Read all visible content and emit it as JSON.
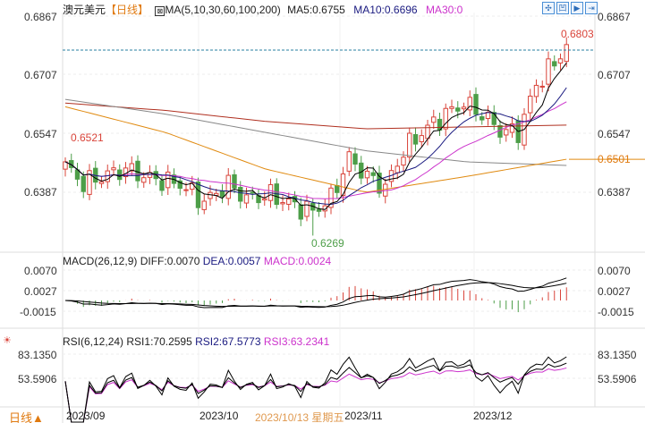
{
  "header": {
    "symbol": "澳元美元",
    "period": "【日线】",
    "ma_params": "MA(5,10,30,60,100,200)",
    "ma5": "MA5:0.6755",
    "ma10": "MA10:0.6696",
    "ma30": "MA30:0"
  },
  "toolbar": {
    "icons": [
      "move-icon",
      "chart-type-icon",
      "play-icon",
      "expand-icon"
    ]
  },
  "main_axis": {
    "left": [
      "0.6867",
      "0.6707",
      "0.6547",
      "0.6387"
    ],
    "right": [
      "0.6867",
      "0.6707",
      "0.6547",
      "0.6387"
    ],
    "last_price": "0.6803",
    "high_marker": "0.6521",
    "low_marker": "0.6269",
    "ma_value_tag": "0.6501"
  },
  "macd": {
    "title": "MACD(26,12,9)",
    "diff": "DIFF:0.0070",
    "dea": "DEA:0.0057",
    "macd": "MACD:0.0024",
    "ticks": [
      "0.0070",
      "0.0027",
      "-0.0015"
    ]
  },
  "rsi": {
    "title": "RSI(6,12,24)",
    "rsi1": "RSI1:70.2595",
    "rsi2": "RSI2:67.5773",
    "rsi3": "RSI3:63.2341",
    "ticks": [
      "83.1350",
      "53.5906"
    ]
  },
  "footer": {
    "period_button": "日线▲",
    "dates": [
      "2023/09",
      "2023/10",
      "2023/11",
      "2023/12"
    ],
    "cursor_date": "2023/10/13 星期五"
  },
  "colors": {
    "up": "#d9443a",
    "down": "#4d9e48",
    "ma5": "#000000",
    "ma10": "#1a1a80",
    "ma30": "#cc33cc",
    "ma60": "#b03020",
    "ma100": "#888888",
    "ma200": "#e08a10",
    "accent": "#e07a10"
  },
  "chart_data": {
    "type": "candlestick",
    "title": "澳元美元 日线",
    "ylim": [
      0.6227,
      0.6867
    ],
    "close_anchors": [
      [
        0,
        0.646
      ],
      [
        3,
        0.641
      ],
      [
        6,
        0.643
      ],
      [
        10,
        0.645
      ],
      [
        14,
        0.6425
      ],
      [
        19,
        0.641
      ],
      [
        23,
        0.636
      ],
      [
        27,
        0.641
      ],
      [
        30,
        0.637
      ],
      [
        34,
        0.638
      ],
      [
        38,
        0.635
      ],
      [
        41,
        0.6335
      ],
      [
        44,
        0.637
      ],
      [
        47,
        0.648
      ],
      [
        50,
        0.643
      ],
      [
        53,
        0.64
      ],
      [
        56,
        0.65
      ],
      [
        59,
        0.655
      ],
      [
        63,
        0.66
      ],
      [
        66,
        0.663
      ],
      [
        69,
        0.66
      ],
      [
        72,
        0.6555
      ],
      [
        75,
        0.655
      ],
      [
        78,
        0.668
      ],
      [
        81,
        0.674
      ],
      [
        83,
        0.6785
      ]
    ],
    "ma60": [
      0.663,
      0.661,
      0.658,
      0.656,
      0.6565,
      0.657
    ],
    "ma100": [
      0.664,
      0.66,
      0.655,
      0.65,
      0.647,
      0.646
    ],
    "ma200": [
      0.662,
      0.655,
      0.645,
      0.6387,
      0.643,
      0.6477
    ]
  }
}
